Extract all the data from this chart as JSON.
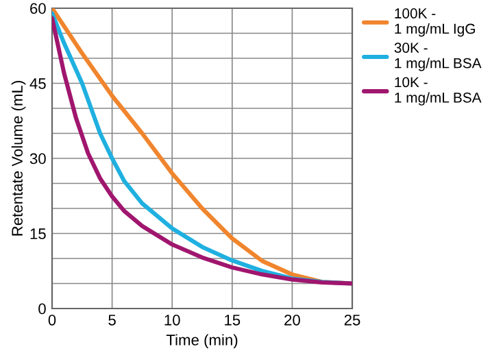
{
  "chart_data": {
    "type": "line",
    "xlabel": "Time (min)",
    "ylabel": "Retentate Volume (mL)",
    "xlim": [
      0,
      25
    ],
    "xticks": [
      0,
      5,
      10,
      15,
      20,
      25
    ],
    "ylim": [
      0,
      60
    ],
    "yticks": [
      0,
      {
        "value": 5,
        "label": null
      },
      {
        "value": 10,
        "label": null
      },
      15,
      {
        "value": 20,
        "label": null
      },
      {
        "value": 25,
        "label": null
      },
      30,
      {
        "value": 35,
        "label": null
      },
      {
        "value": 40,
        "label": null
      },
      45,
      {
        "value": 50,
        "label": null
      },
      {
        "value": 55,
        "label": null
      },
      60
    ],
    "grid": true,
    "legend": "top right",
    "marker": "none",
    "line_style": "solid",
    "series": [
      {
        "name": "100K -\n1 mg/mL IgG",
        "color": "#f0852d",
        "x": [
          0,
          2.5,
          5,
          7.5,
          10,
          12.5,
          15,
          17.5,
          20,
          22.5,
          25
        ],
        "values": [
          60,
          51,
          42.5,
          35,
          27,
          20,
          14,
          9.5,
          6.8,
          5.3,
          5
        ]
      },
      {
        "name": "30K -\n1 mg/mL BSA",
        "color": "#1fb0e0",
        "x": [
          0,
          1,
          2.5,
          4,
          5,
          6,
          7.5,
          10,
          12.5,
          15,
          17.5,
          20,
          22.5,
          25
        ],
        "values": [
          59,
          53,
          45,
          35,
          30,
          25.5,
          21,
          16,
          12.3,
          9.6,
          7.5,
          6,
          5.3,
          5
        ]
      },
      {
        "name": "10K -\n1 mg/mL BSA",
        "color": "#a0166e",
        "x": [
          0,
          1,
          2,
          3,
          4,
          5,
          6,
          7.5,
          10,
          12.5,
          15,
          17.5,
          20,
          22.5,
          25
        ],
        "values": [
          58,
          47,
          38,
          31,
          26,
          22.4,
          19.5,
          16.5,
          12.8,
          10.2,
          8.2,
          6.8,
          5.8,
          5.2,
          5
        ]
      }
    ]
  }
}
